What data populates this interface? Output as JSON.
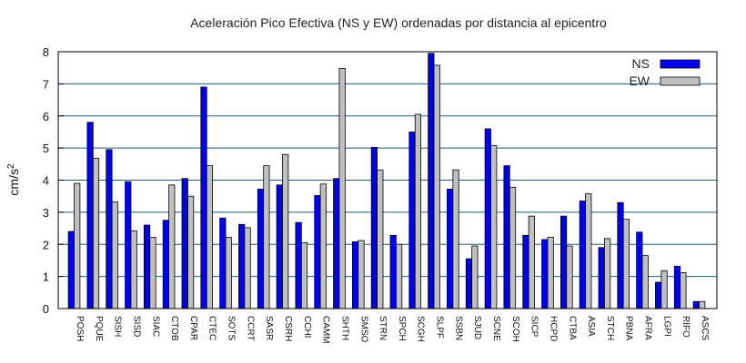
{
  "chart_data": {
    "type": "bar",
    "title": "Aceleración Pico Efectiva (NS y EW) ordenadas por distancia al epicentro",
    "xlabel": "",
    "ylabel_base": "cm/s",
    "ylabel_exp": "2",
    "ylim": [
      0,
      8
    ],
    "yticks": [
      "0",
      "1",
      "2",
      "3",
      "4",
      "5",
      "6",
      "7",
      "8"
    ],
    "grid": true,
    "legend_position": "top-right",
    "categories": [
      "POSH",
      "PQUE",
      "SISH",
      "SISD",
      "SIAC",
      "CTOB",
      "CPAR",
      "CTEC",
      "SOTS",
      "CCRT",
      "SASR",
      "CSRH",
      "CCHI",
      "CAMM",
      "SHTH",
      "SMSO",
      "STRN",
      "SPCH",
      "SCGH",
      "SLPF",
      "SSBN",
      "SJUD",
      "SCNE",
      "SCOH",
      "SICP",
      "HCPD",
      "CTBA",
      "ASIA",
      "STCH",
      "PBNA",
      "AFRA",
      "LGPI",
      "RIFO",
      "ASCS"
    ],
    "series": [
      {
        "name": "NS",
        "color": "#0000ee",
        "values": [
          2.4,
          5.8,
          4.95,
          3.95,
          2.6,
          2.75,
          4.05,
          6.9,
          2.82,
          2.62,
          3.72,
          3.85,
          2.68,
          3.52,
          4.05,
          2.08,
          5.02,
          2.28,
          5.5,
          7.95,
          3.72,
          1.55,
          5.6,
          4.45,
          2.28,
          2.15,
          2.88,
          3.35,
          1.9,
          3.3,
          2.38,
          0.82,
          1.32,
          0.22
        ]
      },
      {
        "name": "EW",
        "color": "#c0c0c0",
        "values": [
          3.9,
          4.68,
          3.32,
          2.42,
          2.22,
          3.85,
          3.5,
          4.45,
          2.22,
          2.52,
          4.45,
          4.8,
          2.05,
          3.88,
          7.48,
          2.12,
          4.32,
          2.0,
          6.05,
          7.58,
          4.32,
          1.95,
          5.08,
          3.78,
          2.88,
          2.22,
          1.95,
          3.58,
          2.18,
          2.78,
          1.65,
          1.18,
          1.12,
          0.22
        ]
      }
    ]
  }
}
